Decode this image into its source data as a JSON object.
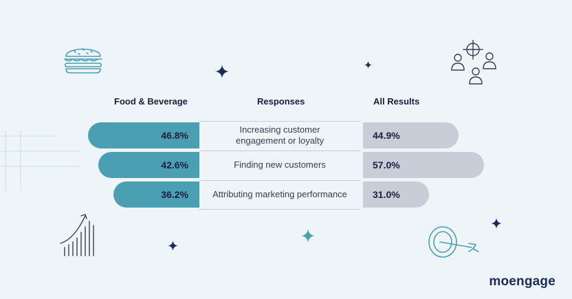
{
  "headers": {
    "left": "Food & Beverage",
    "middle": "Responses",
    "right": "All Results"
  },
  "brand": {
    "logo": "moengage"
  },
  "colors": {
    "left_bar": "#4a9fb3",
    "right_bar": "#c8cdd8",
    "text": "#1d1d3d",
    "background": "#eef5f8"
  },
  "icons": [
    "burger-icon",
    "target-people-icon",
    "growth-chart-icon",
    "dartboard-icon",
    "sparkle-icon"
  ],
  "chart_data": {
    "type": "bar",
    "orientation": "diverging-horizontal",
    "categories": [
      "Increasing customer engagement or loyalty",
      "Finding new customers",
      "Attributing marketing performance"
    ],
    "series": [
      {
        "name": "Food & Beverage",
        "values": [
          46.8,
          42.6,
          36.2
        ],
        "labels": [
          "46.8%",
          "42.6%",
          "36.2%"
        ]
      },
      {
        "name": "All Results",
        "values": [
          44.9,
          57.0,
          31.0
        ],
        "labels": [
          "44.9%",
          "57.0%",
          "31.0%"
        ]
      }
    ],
    "unit": "%",
    "grid": false,
    "legend": "top"
  }
}
